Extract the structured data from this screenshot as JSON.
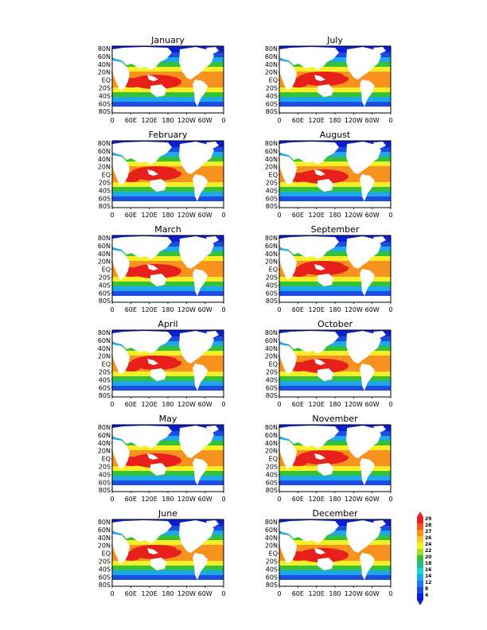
{
  "panels": [
    {
      "title": "January"
    },
    {
      "title": "July"
    },
    {
      "title": "February"
    },
    {
      "title": "August"
    },
    {
      "title": "March"
    },
    {
      "title": "September"
    },
    {
      "title": "April"
    },
    {
      "title": "October"
    },
    {
      "title": "May"
    },
    {
      "title": "November"
    },
    {
      "title": "June"
    },
    {
      "title": "December"
    }
  ],
  "lat_ticks": [
    "80N",
    "60N",
    "40N",
    "20N",
    "EQ",
    "20S",
    "40S",
    "60S",
    "80S"
  ],
  "lon_ticks": [
    "0",
    "60E",
    "120E",
    "180",
    "120W",
    "60W",
    "0"
  ],
  "colorbar": {
    "labels": [
      "29",
      "28",
      "27",
      "26",
      "24",
      "22",
      "20",
      "18",
      "16",
      "14",
      "12",
      "8",
      "4"
    ],
    "colors": [
      "#e8201c",
      "#f05a1e",
      "#f7921f",
      "#fcc81f",
      "#f6ee26",
      "#a8dc2a",
      "#35c238",
      "#2db58e",
      "#17d3d4",
      "#1ea8ec",
      "#1c7be6",
      "#1c4de0",
      "#0a1ed2"
    ]
  },
  "sst_levels": {
    "polar": "#0a1ed2",
    "cold": "#1c4de0",
    "cool": "#1ea8ec",
    "temperate": "#35c238",
    "warm": "#f6ee26",
    "hot": "#f7921f",
    "warm_pool": "#e8201c"
  }
}
